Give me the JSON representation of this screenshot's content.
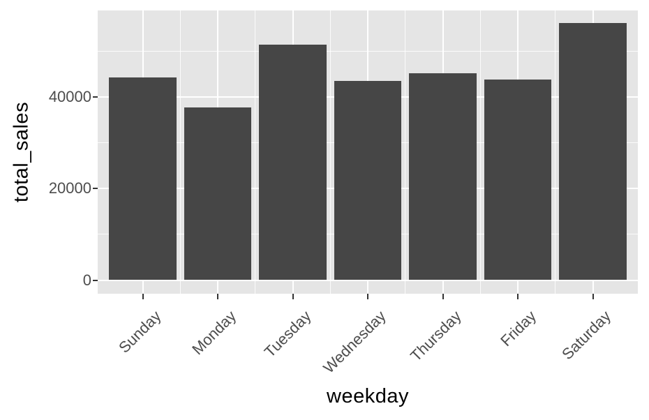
{
  "chart_data": {
    "type": "bar",
    "title": "",
    "xlabel": "weekday",
    "ylabel": "total_sales",
    "categories": [
      "Sunday",
      "Monday",
      "Tuesday",
      "Wednesday",
      "Thursday",
      "Friday",
      "Saturday"
    ],
    "values": [
      44350,
      37850,
      51550,
      43600,
      45250,
      43900,
      56250
    ],
    "ylim": [
      0,
      59000
    ],
    "y_major_ticks": [
      {
        "value": 0,
        "label": "0"
      },
      {
        "value": 20000,
        "label": "20000"
      },
      {
        "value": 40000,
        "label": "40000"
      }
    ],
    "y_minor_ticks": [
      10000,
      30000,
      50000
    ],
    "bar_rel_width": 0.9,
    "x_axis_expand": 0.6,
    "grid": "on",
    "legend_position": "none",
    "style": {
      "bar_color": "#464646",
      "panel_bg": "#E5E5E5",
      "grid_color": "#FFFFFF",
      "tick_label_color": "#4D4D4D",
      "axis_tick_color": "#333333",
      "axis_title_color": "#000000",
      "figure_bg": "#FFFFFF"
    }
  }
}
